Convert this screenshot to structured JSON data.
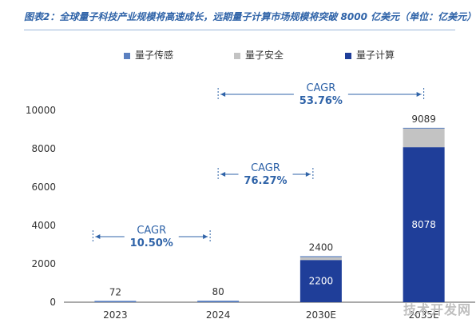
{
  "caption": "图表2：全球量子科技产业规模将高速成长，远期量子计算市场规模将突破 8000 亿美元（单位：亿美元）",
  "watermark": "技术开发网",
  "colors": {
    "sensing": "#5b80c0",
    "security": "#c3c3c3",
    "computing": "#1f3e99",
    "annotation": "#2f63a8",
    "axis": "#333333"
  },
  "chart_data": {
    "type": "bar",
    "stacked": true,
    "categories": [
      "2023",
      "2024",
      "2030E",
      "2035E"
    ],
    "series": [
      {
        "name": "量子传感",
        "values": [
          72,
          80,
          50,
          30
        ]
      },
      {
        "name": "量子安全",
        "values": [
          0,
          0,
          150,
          981
        ]
      },
      {
        "name": "量子计算",
        "values": [
          0,
          0,
          2200,
          8078
        ]
      }
    ],
    "totals": [
      "72",
      "80",
      "2400",
      "9089"
    ],
    "inner_labels": [
      "",
      "",
      "2200",
      "8078"
    ],
    "ylim": [
      0,
      10000
    ],
    "yticks": [
      "0",
      "2000",
      "4000",
      "6000",
      "8000",
      "10000"
    ],
    "legend_position": "top",
    "annotations": [
      {
        "label": "CAGR",
        "value": "10.50%",
        "from": "2023",
        "to": "2024"
      },
      {
        "label": "CAGR",
        "value": "76.27%",
        "from": "2024",
        "to": "2030E"
      },
      {
        "label": "CAGR",
        "value": "53.76%",
        "from": "2024",
        "to": "2035E"
      }
    ]
  }
}
